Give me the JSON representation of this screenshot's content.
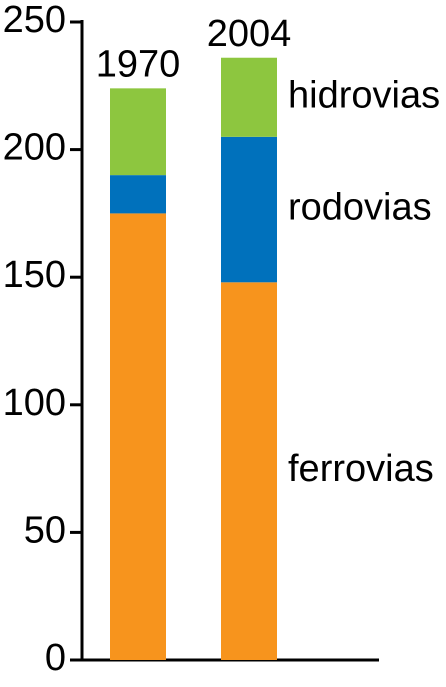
{
  "chart_data": {
    "type": "stacked_bar",
    "categories": [
      "1970",
      "2004"
    ],
    "series": [
      {
        "name": "ferrovias",
        "color": "#f7941d",
        "values": [
          175,
          148
        ]
      },
      {
        "name": "rodovias",
        "color": "#0071bc",
        "values": [
          15,
          57
        ]
      },
      {
        "name": "hidrovias",
        "color": "#8dc63f",
        "values": [
          34,
          31
        ]
      }
    ],
    "ylim": [
      0,
      250
    ],
    "yticks": [
      0,
      50,
      100,
      150,
      200,
      250
    ]
  }
}
